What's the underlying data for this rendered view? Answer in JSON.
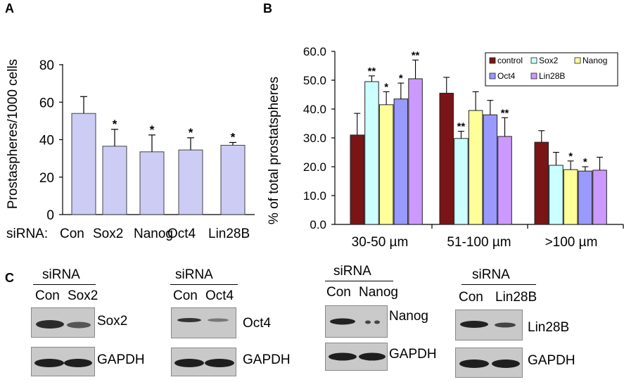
{
  "panels": {
    "a": "A",
    "b": "B",
    "c": "C"
  },
  "chart_data": [
    {
      "type": "bar",
      "panel": "A",
      "categories": [
        "Con",
        "Sox2",
        "Nanog",
        "Oct4",
        "Lin28B"
      ],
      "category_prefix": "siRNA:",
      "values": [
        54,
        36.5,
        33.5,
        34.5,
        37
      ],
      "errors": [
        9,
        9,
        9,
        6.5,
        1.5
      ],
      "significance": [
        "",
        "*",
        "*",
        "*",
        "*"
      ],
      "ylabel": "Prostaspheres/1000 cells",
      "ylim": [
        0,
        80
      ],
      "yticks": [
        "0",
        "20",
        "40",
        "60",
        "80"
      ],
      "bar_color": "#ccccf5",
      "grid": false
    },
    {
      "type": "bar",
      "panel": "B",
      "categories": [
        "30-50 µm",
        "51-100 µm",
        ">100 µm"
      ],
      "series": [
        {
          "name": "control",
          "color": "#7b1416",
          "values": [
            31.0,
            45.5,
            28.5
          ],
          "errors": [
            7.5,
            5.5,
            4.0
          ],
          "significance": [
            "",
            "",
            ""
          ]
        },
        {
          "name": "Sox2",
          "color": "#ccffff",
          "values": [
            49.5,
            29.8,
            20.5
          ],
          "errors": [
            2.0,
            2.5,
            4.5
          ],
          "significance": [
            "**",
            "**",
            ""
          ]
        },
        {
          "name": "Nanog",
          "color": "#ffff99",
          "values": [
            41.5,
            39.5,
            19.0
          ],
          "errors": [
            4.5,
            6.5,
            3.0
          ],
          "significance": [
            "*",
            "",
            "*"
          ]
        },
        {
          "name": "Oct4",
          "color": "#9999ff",
          "values": [
            43.5,
            38.0,
            18.5
          ],
          "errors": [
            5.5,
            5.0,
            1.5
          ],
          "significance": [
            "*",
            "",
            "*"
          ]
        },
        {
          "name": "Lin28B",
          "color": "#cc99ff",
          "values": [
            50.5,
            30.5,
            18.8
          ],
          "errors": [
            6.5,
            6.5,
            4.5
          ],
          "significance": [
            "**",
            "**",
            ""
          ]
        }
      ],
      "ylabel": "% of total prostatspheres",
      "ylim": [
        0,
        60
      ],
      "yticks": [
        "0.0",
        "10.0",
        "20.0",
        "30.0",
        "40.0",
        "50.0",
        "60.0"
      ],
      "legend": "top-right",
      "grid": false
    }
  ],
  "blots": [
    {
      "header": "siRNA",
      "lanes": [
        "Con",
        "Sox2"
      ],
      "targets": [
        "Sox2",
        "GAPDH"
      ]
    },
    {
      "header": "siRNA",
      "lanes": [
        "Con",
        "Oct4"
      ],
      "targets": [
        "Oct4",
        "GAPDH"
      ]
    },
    {
      "header": "siRNA",
      "lanes": [
        "Con",
        "Nanog"
      ],
      "targets": [
        "Nanog",
        "GAPDH"
      ]
    },
    {
      "header": "siRNA",
      "lanes": [
        "Con",
        "Lin28B"
      ],
      "targets": [
        "Lin28B",
        "GAPDH"
      ]
    }
  ]
}
